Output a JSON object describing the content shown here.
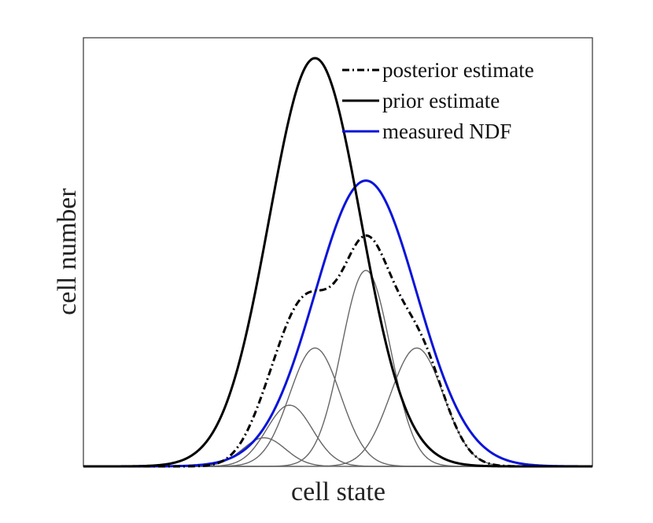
{
  "chart_data": {
    "type": "line",
    "title": "",
    "xlabel": "cell state",
    "ylabel": "cell number",
    "xlim": [
      0,
      10
    ],
    "ylim": [
      0,
      1.05
    ],
    "grid": false,
    "ticks_shown": false,
    "legend_position": "top-right",
    "series": [
      {
        "name": "posterior estimate",
        "style": "dashdot",
        "color": "#000000",
        "kind": "sum",
        "components": [
          {
            "mu": 3.55,
            "sigma": 0.42,
            "amp": 0.07
          },
          {
            "mu": 4.05,
            "sigma": 0.45,
            "amp": 0.15
          },
          {
            "mu": 4.55,
            "sigma": 0.5,
            "amp": 0.29
          },
          {
            "mu": 5.55,
            "sigma": 0.48,
            "amp": 0.48
          },
          {
            "mu": 6.55,
            "sigma": 0.52,
            "amp": 0.29
          }
        ]
      },
      {
        "name": "prior estimate",
        "style": "solid",
        "color": "#000000",
        "kind": "gaussian",
        "mu": 4.55,
        "sigma": 0.9,
        "amp": 1.0
      },
      {
        "name": "measured NDF",
        "style": "solid",
        "color": "#0a14d8",
        "kind": "gaussian",
        "mu": 5.55,
        "sigma": 1.0,
        "amp": 0.7
      }
    ],
    "component_curves": {
      "color": "#666666",
      "note": "thin gray individual components of posterior estimate",
      "components": [
        {
          "mu": 3.55,
          "sigma": 0.42,
          "amp": 0.07
        },
        {
          "mu": 4.05,
          "sigma": 0.45,
          "amp": 0.15
        },
        {
          "mu": 4.55,
          "sigma": 0.5,
          "amp": 0.29
        },
        {
          "mu": 5.55,
          "sigma": 0.48,
          "amp": 0.48
        },
        {
          "mu": 6.55,
          "sigma": 0.52,
          "amp": 0.29
        }
      ]
    }
  }
}
